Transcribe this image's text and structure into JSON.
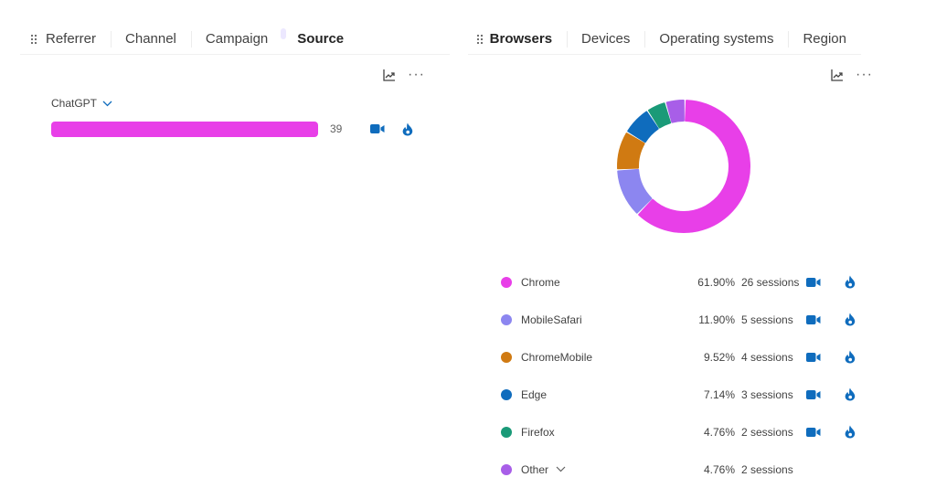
{
  "left_tabs": {
    "items": [
      "Referrer",
      "Channel",
      "Campaign",
      "Source"
    ],
    "active": "Source"
  },
  "right_tabs": {
    "items": [
      "Browsers",
      "Devices",
      "Operating systems",
      "Region"
    ],
    "active": "Browsers"
  },
  "source_panel": {
    "filter_label": "ChatGPT",
    "bar": {
      "value": "39",
      "fill_fraction": 1.0,
      "color": "#e83fe8"
    }
  },
  "colors": {
    "accent_blue": "#0f6cbd",
    "icon_gray": "#616161"
  },
  "browsers": {
    "chart_data": {
      "type": "pie",
      "categories": [
        "Chrome",
        "MobileSafari",
        "ChromeMobile",
        "Edge",
        "Firefox",
        "Other"
      ],
      "values": [
        61.9,
        11.9,
        9.52,
        7.14,
        4.76,
        4.76
      ],
      "colors": [
        "#e83fe8",
        "#8c86f0",
        "#d07a12",
        "#0f6cbd",
        "#1a9a78",
        "#a85ee8"
      ]
    },
    "rows": [
      {
        "name": "Chrome",
        "pct": "61.90%",
        "sessions": "26 sessions",
        "color": "#e83fe8",
        "actions": true
      },
      {
        "name": "MobileSafari",
        "pct": "11.90%",
        "sessions": "5 sessions",
        "color": "#8c86f0",
        "actions": true
      },
      {
        "name": "ChromeMobile",
        "pct": "9.52%",
        "sessions": "4 sessions",
        "color": "#d07a12",
        "actions": true
      },
      {
        "name": "Edge",
        "pct": "7.14%",
        "sessions": "3 sessions",
        "color": "#0f6cbd",
        "actions": true
      },
      {
        "name": "Firefox",
        "pct": "4.76%",
        "sessions": "2 sessions",
        "color": "#1a9a78",
        "actions": true
      },
      {
        "name": "Other",
        "pct": "4.76%",
        "sessions": "2 sessions",
        "color": "#a85ee8",
        "actions": false,
        "expandable": true
      }
    ]
  }
}
